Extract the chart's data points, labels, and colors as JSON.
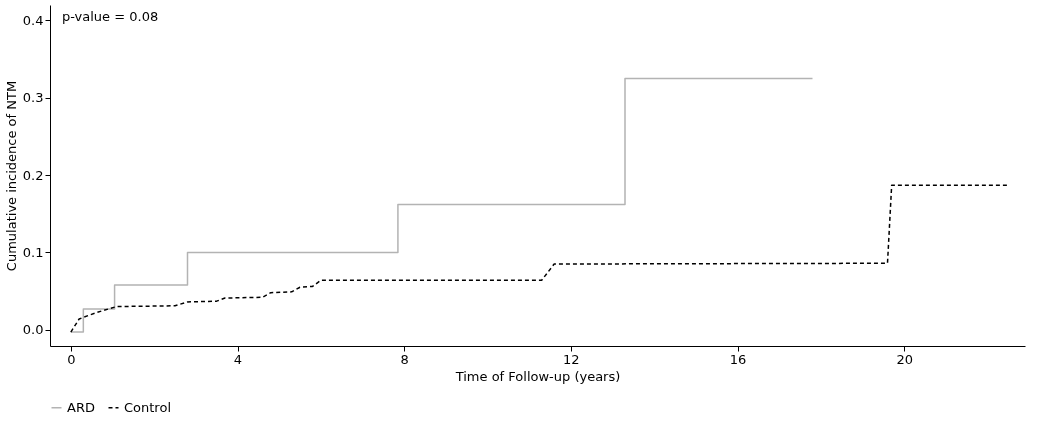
{
  "chart_data": {
    "type": "step",
    "xlabel": "Time of Follow-up (years)",
    "ylabel": "Cumulative incidence of NTM",
    "annotations": [
      "p-value = 0.08"
    ],
    "xlim": [
      -0.5,
      22.9
    ],
    "ylim": [
      -0.021,
      0.42
    ],
    "xticks": [
      0,
      4,
      8,
      12,
      16,
      20
    ],
    "yticks": [
      {
        "value": 0,
        "label": "0.0"
      },
      {
        "value": 0.1,
        "label": "0.1"
      },
      {
        "value": 0.2,
        "label": "0.2"
      },
      {
        "value": 0.3,
        "label": "0.3"
      },
      {
        "value": 0.4,
        "label": "0.4"
      }
    ],
    "grid": false,
    "legend": "bottom",
    "series": [
      {
        "name": "ARD",
        "type": "step",
        "color": "#b3b3b3",
        "line_style": "solid",
        "x": [
          0,
          0.3,
          1.05,
          2.8,
          7.85,
          13.3,
          17.8
        ],
        "values": [
          -0.003,
          0.027,
          0.058,
          0.1,
          0.162,
          0.325,
          0.325
        ]
      },
      {
        "name": "Control",
        "type": "line",
        "color": "#000000",
        "line_style": "dashed",
        "x": [
          0,
          0.2,
          0.6,
          1.1,
          2.5,
          2.8,
          3.5,
          3.7,
          4.6,
          4.8,
          5.3,
          5.5,
          5.8,
          6.0,
          11.3,
          11.6,
          19.6,
          19.7,
          22.5
        ],
        "values": [
          -0.003,
          0.014,
          0.022,
          0.03,
          0.031,
          0.036,
          0.037,
          0.041,
          0.042,
          0.048,
          0.049,
          0.055,
          0.056,
          0.064,
          0.064,
          0.085,
          0.086,
          0.187,
          0.187
        ]
      }
    ]
  }
}
